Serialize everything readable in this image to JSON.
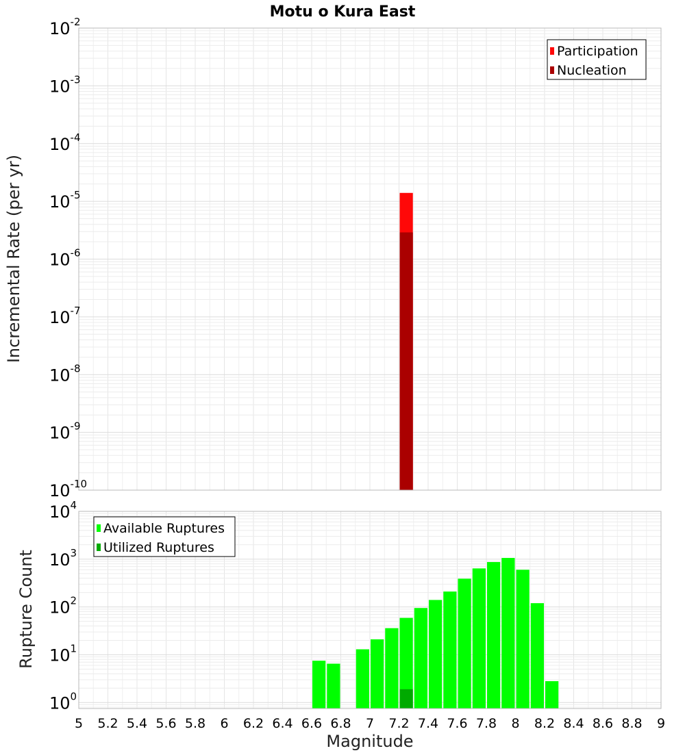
{
  "chart_data": [
    {
      "type": "bar",
      "scale": "log",
      "title": "Motu o Kura East",
      "ylabel": "Incremental Rate (per yr)",
      "xlabel": "",
      "xlim": [
        5,
        9
      ],
      "ylim": [
        1e-10,
        0.01
      ],
      "ytick_exponents": [
        -10,
        -9,
        -8,
        -7,
        -6,
        -5,
        -4,
        -3,
        -2
      ],
      "legend": {
        "placement": "top-right",
        "entries": [
          "Participation",
          "Nucleation"
        ]
      },
      "series": [
        {
          "name": "Participation",
          "color": "#ff0808",
          "points": [
            {
              "x": 7.25,
              "y": 1.4e-05
            }
          ]
        },
        {
          "name": "Nucleation",
          "color": "#aa0000",
          "points": [
            {
              "x": 7.25,
              "y": 2.9e-06
            }
          ]
        }
      ]
    },
    {
      "type": "bar",
      "scale": "log",
      "ylabel": "Rupture Count",
      "xlabel": "Magnitude",
      "xlim": [
        5,
        9
      ],
      "ylim": [
        0.75,
        10000
      ],
      "ytick_exponents": [
        0,
        1,
        2,
        3,
        4
      ],
      "xticks": [
        "5",
        "5.2",
        "5.4",
        "5.6",
        "5.8",
        "6",
        "6.2",
        "6.4",
        "6.6",
        "6.8",
        "7",
        "7.2",
        "7.4",
        "7.6",
        "7.8",
        "8",
        "8.2",
        "8.4",
        "8.6",
        "8.8",
        "9"
      ],
      "legend": {
        "placement": "top-left",
        "entries": [
          "Available Ruptures",
          "Utilized Ruptures"
        ]
      },
      "series": [
        {
          "name": "Available Ruptures",
          "color": "#00ff00",
          "points": [
            {
              "x": 6.65,
              "y": 7.5
            },
            {
              "x": 6.75,
              "y": 6.5
            },
            {
              "x": 6.95,
              "y": 13
            },
            {
              "x": 7.05,
              "y": 21
            },
            {
              "x": 7.15,
              "y": 36
            },
            {
              "x": 7.25,
              "y": 59
            },
            {
              "x": 7.35,
              "y": 95
            },
            {
              "x": 7.45,
              "y": 140
            },
            {
              "x": 7.55,
              "y": 210
            },
            {
              "x": 7.65,
              "y": 390
            },
            {
              "x": 7.75,
              "y": 640
            },
            {
              "x": 7.85,
              "y": 870
            },
            {
              "x": 7.95,
              "y": 1060
            },
            {
              "x": 8.05,
              "y": 600
            },
            {
              "x": 8.15,
              "y": 120
            },
            {
              "x": 8.25,
              "y": 2.8
            }
          ]
        },
        {
          "name": "Utilized Ruptures",
          "color": "#00aa00",
          "points": [
            {
              "x": 7.25,
              "y": 1.9
            }
          ]
        }
      ]
    }
  ]
}
